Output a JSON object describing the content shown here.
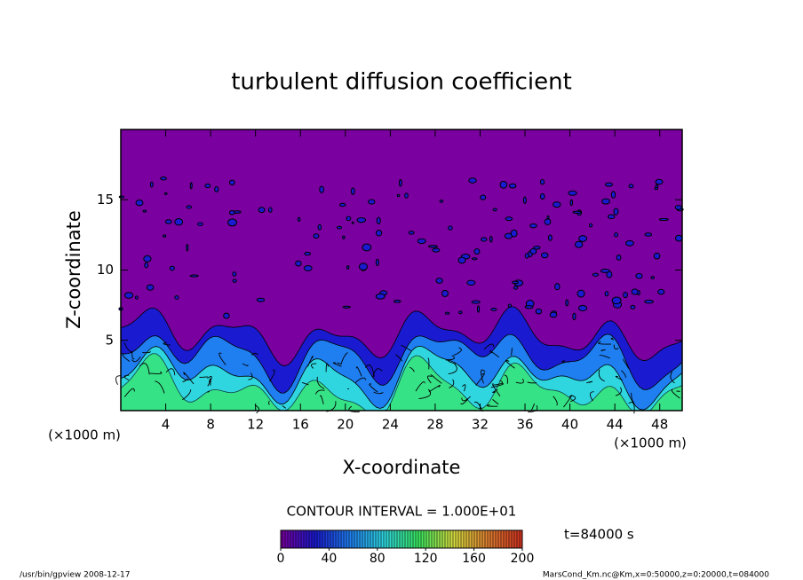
{
  "chart_data": {
    "type": "contour",
    "title": "turbulent diffusion coefficient",
    "xlabel": "X-coordinate",
    "ylabel": "Z-coordinate",
    "xunit": "(×1000 m)",
    "yunit": "(×1000 m)",
    "xlim": [
      0,
      50
    ],
    "ylim": [
      0,
      20
    ],
    "xticks": [
      4,
      8,
      12,
      16,
      20,
      24,
      28,
      32,
      36,
      40,
      44,
      48
    ],
    "yticks": [
      5,
      10,
      15
    ],
    "contour_interval": "CONTOUR INTERVAL = 1.000E+01",
    "time_label": "t=84000 s",
    "colorbar": {
      "lim": [
        0,
        200
      ],
      "ticks": [
        0,
        40,
        80,
        120,
        160,
        200
      ],
      "colors": [
        "#7a00a0",
        "#1a1ad0",
        "#1f7ef0",
        "#2fd6e0",
        "#3ae860",
        "#d8e040",
        "#e08030",
        "#d03020"
      ]
    },
    "footer_left": "/usr/bin/gpview  2008-12-17",
    "footer_right": "MarsCond_Km.nc@Km,x=0:50000,z=0:20000,t=084000"
  }
}
